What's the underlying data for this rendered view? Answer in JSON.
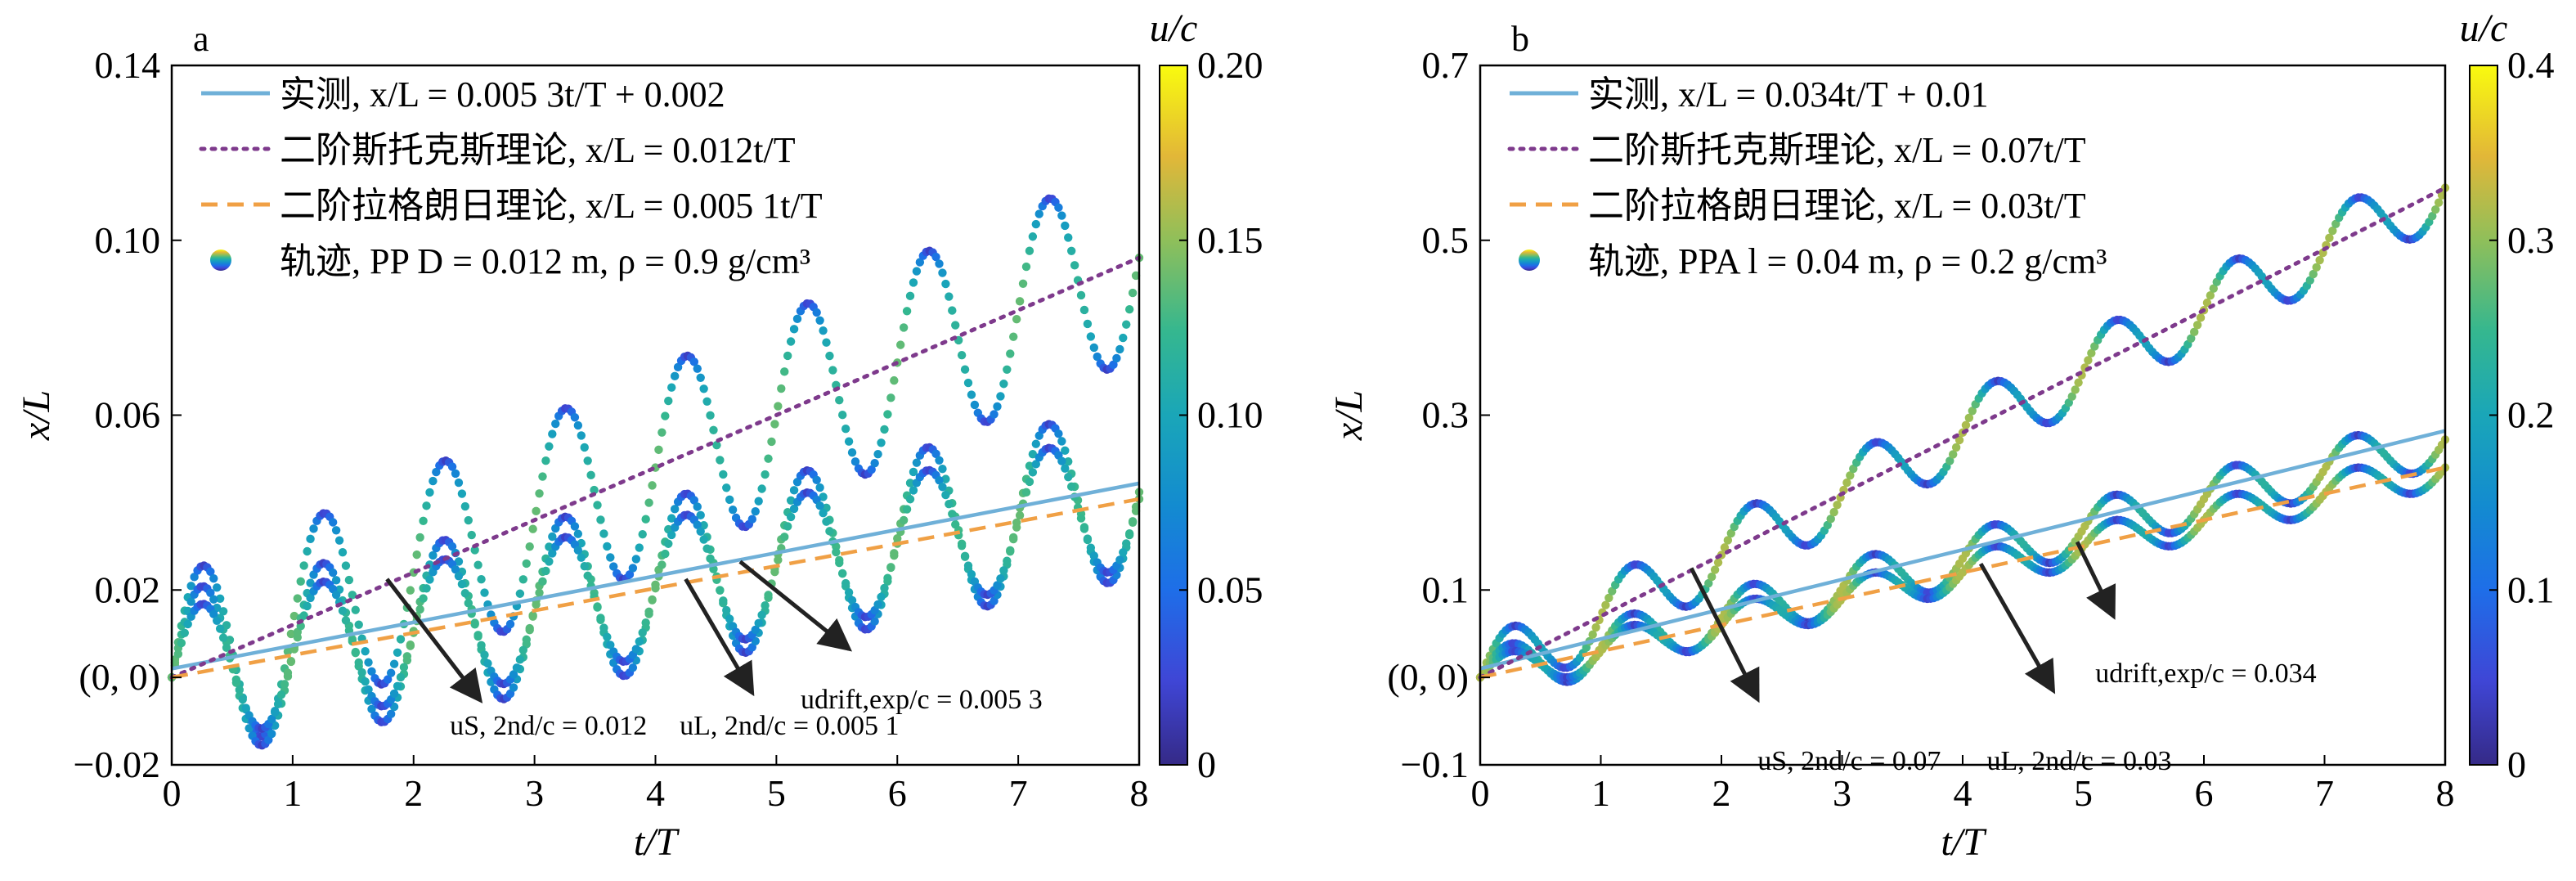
{
  "chart_data": [
    {
      "type": "scatter",
      "panel_label": "a",
      "xlabel": "t/T",
      "ylabel": "x/L",
      "xlim": [
        0,
        8
      ],
      "ylim": [
        -0.02,
        0.14
      ],
      "xticks": [
        "0",
        "1",
        "2",
        "3",
        "4",
        "5",
        "6",
        "7",
        "8"
      ],
      "yticks": [
        {
          "value": -0.02,
          "label": "−0.02"
        },
        {
          "value": 0.0,
          "label": "(0, 0)"
        },
        {
          "value": 0.02,
          "label": "0.02"
        },
        {
          "value": 0.06,
          "label": "0.06"
        },
        {
          "value": 0.1,
          "label": "0.10"
        },
        {
          "value": 0.14,
          "label": "0.14"
        }
      ],
      "colorbar": {
        "label": "u/c",
        "range": [
          0,
          0.2
        ],
        "ticks": [
          {
            "value": 0,
            "label": "0"
          },
          {
            "value": 0.05,
            "label": "0.05"
          },
          {
            "value": 0.1,
            "label": "0.10"
          },
          {
            "value": 0.15,
            "label": "0.15"
          },
          {
            "value": 0.2,
            "label": "0.20"
          }
        ]
      },
      "legend": [
        {
          "text": "实测, x/L = 0.005 3t/T + 0.002",
          "style": "solid",
          "color": "#6fb0d8"
        },
        {
          "text": "二阶斯托克斯理论, x/L = 0.012t/T",
          "style": "dotted",
          "color": "#7e3a8c"
        },
        {
          "text": "二阶拉格朗日理论, x/L = 0.005 1t/T",
          "style": "dashed",
          "color": "#f0a045"
        },
        {
          "text": "轨迹, PP D = 0.012 m, ρ = 0.9 g/cm³",
          "style": "marker",
          "color": "#2b8cbe"
        }
      ],
      "lines": [
        {
          "name": "实测",
          "slope": 0.0053,
          "intercept": 0.002,
          "style": "solid",
          "color": "#6fb0d8"
        },
        {
          "name": "二阶斯托克斯理论",
          "slope": 0.012,
          "intercept": 0,
          "style": "dotted",
          "color": "#7e3a8c"
        },
        {
          "name": "二阶拉格朗日理论",
          "slope": 0.0051,
          "intercept": 0,
          "style": "dashed",
          "color": "#f0a045"
        }
      ],
      "trajectories": [
        {
          "drift": 0.012,
          "amplitude": 0.0225
        },
        {
          "drift": 0.0053,
          "amplitude": 0.0195
        },
        {
          "drift": 0.0051,
          "amplitude": 0.0155
        }
      ],
      "annotations": [
        {
          "text": "uS, 2nd/c = 0.012",
          "at": [
            2.3,
            -0.006
          ],
          "arrow_from": [
            1.78,
            0.0225
          ],
          "arrow_to": [
            2.55,
            -0.0052
          ]
        },
        {
          "text": "uL, 2nd/c = 0.005 1",
          "at": [
            4.2,
            -0.006
          ],
          "arrow_from": [
            4.25,
            0.0225
          ],
          "arrow_to": [
            4.8,
            -0.0035
          ]
        },
        {
          "text": "udrift,exp/c = 0.005 3",
          "at": [
            5.2,
            0.0
          ],
          "arrow_from": [
            4.7,
            0.0265
          ],
          "arrow_to": [
            5.6,
            0.0065
          ]
        }
      ]
    },
    {
      "type": "scatter",
      "panel_label": "b",
      "xlabel": "t/T",
      "ylabel": "x/L",
      "xlim": [
        0,
        8
      ],
      "ylim": [
        -0.1,
        0.7
      ],
      "xticks": [
        "0",
        "1",
        "2",
        "3",
        "4",
        "5",
        "6",
        "7",
        "8"
      ],
      "yticks": [
        {
          "value": -0.1,
          "label": "−0.1"
        },
        {
          "value": 0.0,
          "label": "(0, 0)"
        },
        {
          "value": 0.1,
          "label": "0.1"
        },
        {
          "value": 0.3,
          "label": "0.3"
        },
        {
          "value": 0.5,
          "label": "0.5"
        },
        {
          "value": 0.7,
          "label": "0.7"
        }
      ],
      "colorbar": {
        "label": "u/c",
        "range": [
          0,
          0.4
        ],
        "ticks": [
          {
            "value": 0,
            "label": "0"
          },
          {
            "value": 0.1,
            "label": "0.1"
          },
          {
            "value": 0.2,
            "label": "0.2"
          },
          {
            "value": 0.3,
            "label": "0.3"
          },
          {
            "value": 0.4,
            "label": "0.4"
          }
        ]
      },
      "legend": [
        {
          "text": "实测, x/L = 0.034t/T + 0.01",
          "style": "solid",
          "color": "#6fb0d8"
        },
        {
          "text": "二阶斯托克斯理论, x/L = 0.07t/T",
          "style": "dotted",
          "color": "#7e3a8c"
        },
        {
          "text": "二阶拉格朗日理论, x/L = 0.03t/T",
          "style": "dashed",
          "color": "#f0a045"
        },
        {
          "text": "轨迹, PPA l = 0.04 m, ρ = 0.2 g/cm³",
          "style": "marker",
          "color": "#2b8cbe"
        }
      ],
      "lines": [
        {
          "name": "实测",
          "slope": 0.034,
          "intercept": 0.01,
          "style": "solid",
          "color": "#6fb0d8"
        },
        {
          "name": "二阶斯托克斯理论",
          "slope": 0.07,
          "intercept": 0,
          "style": "dotted",
          "color": "#7e3a8c"
        },
        {
          "name": "二阶拉格朗日理论",
          "slope": 0.03,
          "intercept": 0,
          "style": "dashed",
          "color": "#f0a045"
        }
      ],
      "trajectories": [
        {
          "drift": 0.07,
          "amplitude": 0.04
        },
        {
          "drift": 0.034,
          "amplitude": 0.03
        },
        {
          "drift": 0.03,
          "amplitude": 0.022
        }
      ],
      "annotations": [
        {
          "text": "uS, 2nd/c = 0.07",
          "at": [
            2.3,
            -0.07
          ],
          "arrow_from": [
            1.75,
            0.125
          ],
          "arrow_to": [
            2.3,
            -0.025
          ]
        },
        {
          "text": "uL, 2nd/c = 0.03",
          "at": [
            4.2,
            -0.07
          ],
          "arrow_from": [
            4.15,
            0.13
          ],
          "arrow_to": [
            4.75,
            -0.015
          ]
        },
        {
          "text": "udrift,exp/c = 0.034",
          "at": [
            5.1,
            0.03
          ],
          "arrow_from": [
            4.95,
            0.155
          ],
          "arrow_to": [
            5.25,
            0.07
          ]
        }
      ]
    }
  ]
}
